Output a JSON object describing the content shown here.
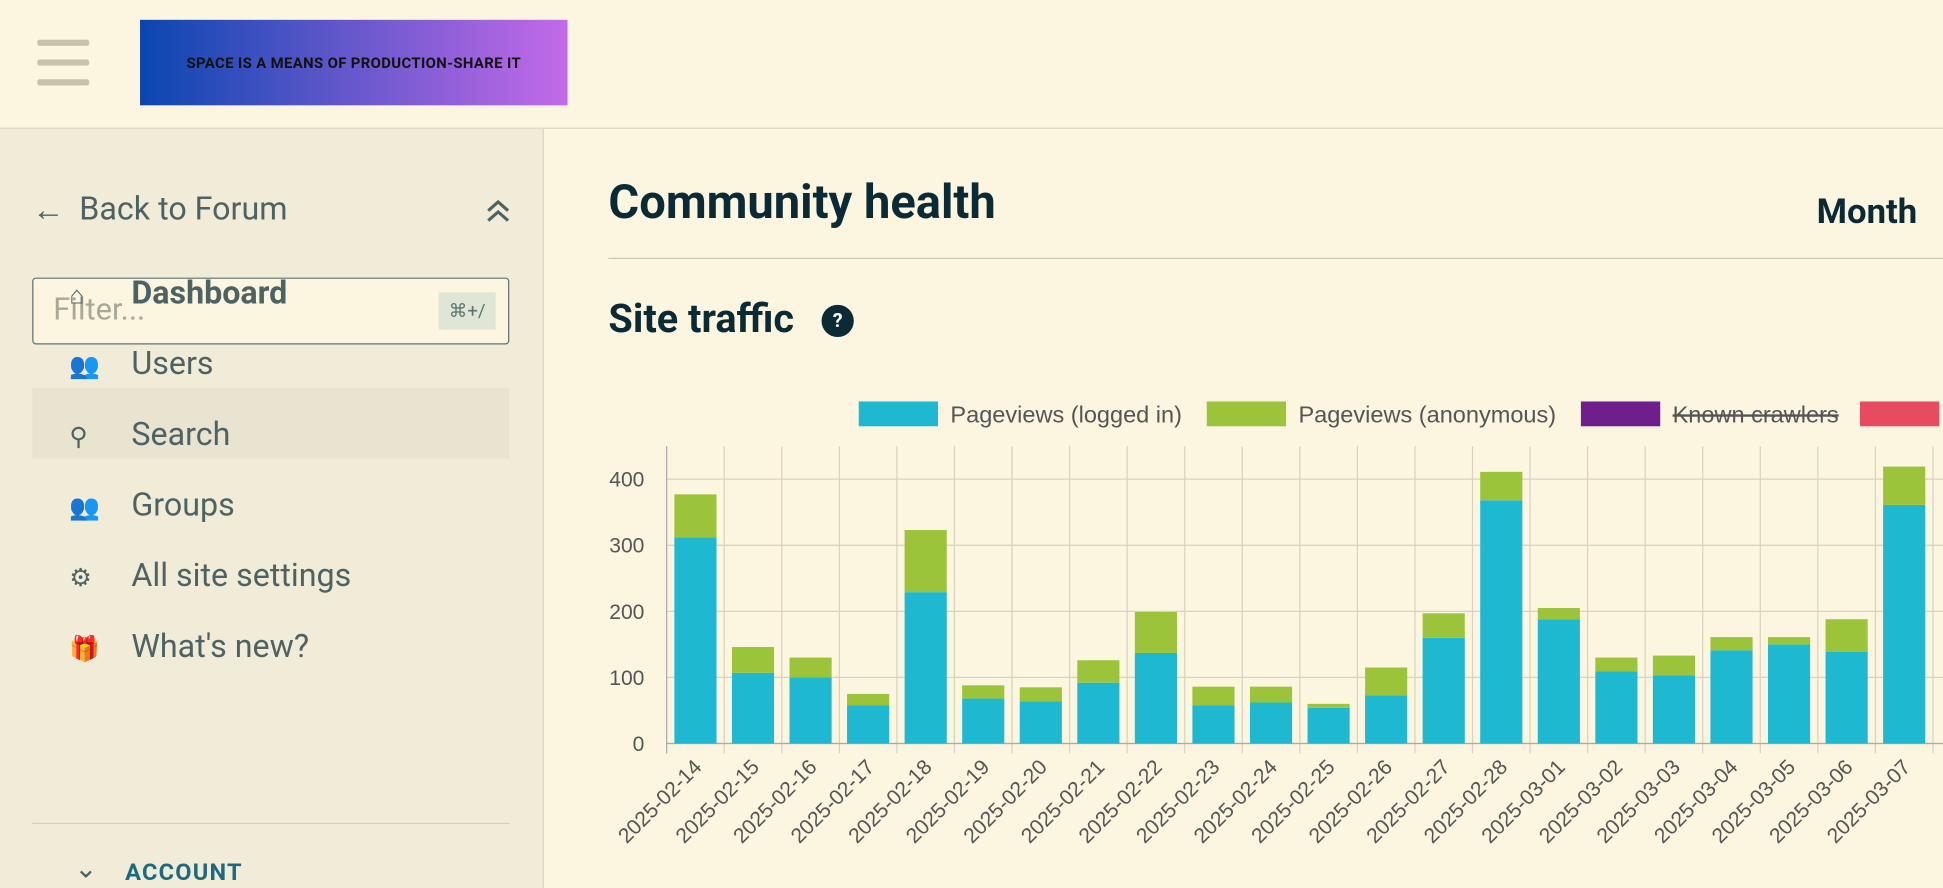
{
  "header": {
    "logo_text": "SPACE IS A MEANS OF PRODUCTION-SHARE IT"
  },
  "sidebar": {
    "back": "Back to Forum",
    "filter_placeholder": "Filter...",
    "shortcut": "⌘+/",
    "nav": [
      "Dashboard",
      "Users",
      "Search",
      "Groups",
      "All site settings",
      "What's new?"
    ],
    "section": "ACCOUNT"
  },
  "main": {
    "title": "Community health",
    "period": "Month",
    "section_title": "Site traffic",
    "help": "?"
  },
  "chart_data": {
    "type": "bar",
    "stacked": true,
    "grid": true,
    "categories": [
      "2025-02-14",
      "2025-02-15",
      "2025-02-16",
      "2025-02-17",
      "2025-02-18",
      "2025-02-19",
      "2025-02-20",
      "2025-02-21",
      "2025-02-22",
      "2025-02-23",
      "2025-02-24",
      "2025-02-25",
      "2025-02-26",
      "2025-02-27",
      "2025-02-28",
      "2025-03-01",
      "2025-03-02",
      "2025-03-03",
      "2025-03-04",
      "2025-03-05",
      "2025-03-06",
      "2025-03-07"
    ],
    "series": [
      {
        "name": "Pageviews (logged in)",
        "color": "#1fb8d1",
        "values": [
          312,
          107,
          100,
          58,
          229,
          68,
          64,
          92,
          137,
          58,
          62,
          54,
          73,
          160,
          368,
          188,
          109,
          103,
          141,
          150,
          139,
          361
        ]
      },
      {
        "name": "Pageviews (anonymous)",
        "color": "#9cc43b",
        "values": [
          65,
          39,
          30,
          17,
          94,
          20,
          21,
          34,
          62,
          28,
          24,
          6,
          42,
          37,
          43,
          17,
          21,
          30,
          20,
          11,
          49,
          58
        ]
      },
      {
        "name": "Known crawlers",
        "color": "#6f1e8c",
        "hidden": true,
        "values": [
          null,
          null,
          null,
          null,
          null,
          null,
          null,
          null,
          null,
          null,
          null,
          null,
          null,
          null,
          null,
          null,
          null,
          null,
          null,
          null,
          null,
          null
        ]
      }
    ],
    "ylim": [
      0,
      450
    ],
    "yticks": [
      0,
      100,
      200,
      300,
      400
    ]
  }
}
